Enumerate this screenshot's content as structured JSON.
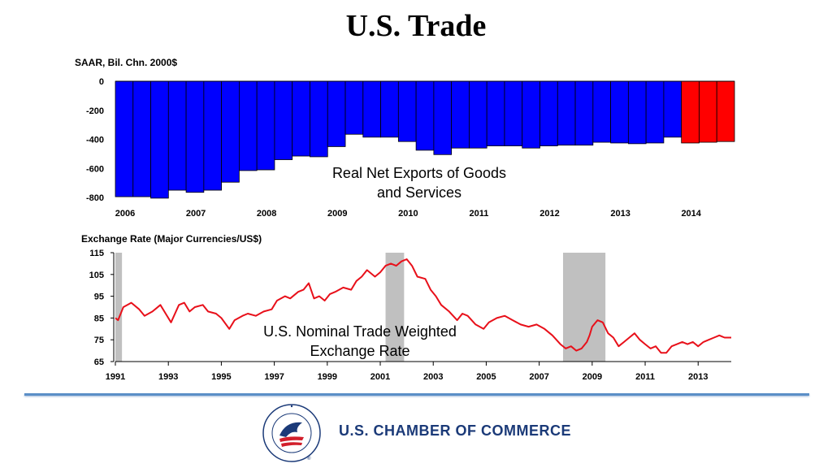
{
  "title": "U.S. Trade",
  "brand": {
    "name": "U.S. CHAMBER OF COMMERCE",
    "seal_text": "THE SPIRIT OF ENTERPRISE · U.S. CHAMBER OF COMMERCE",
    "reg_mark": "®"
  },
  "colors": {
    "bar_actual": "#0000ff",
    "bar_forecast": "#ff0000",
    "line": "#e8101a",
    "recession": "#c0c0c0",
    "divider": "#5b8fc7",
    "brand": "#1b3a78"
  },
  "chart_data": [
    {
      "type": "bar",
      "ylabel": "SAAR, Bil. Chn. 2000$",
      "annotation": [
        "Real Net Exports of Goods",
        "and Services"
      ],
      "ylim": [
        -800,
        0
      ],
      "yticks": [
        "0",
        "-200",
        "-400",
        "-600",
        "-800"
      ],
      "xtick_labels": [
        "2006",
        "2007",
        "2008",
        "2009",
        "2010",
        "2011",
        "2012",
        "2013",
        "2014"
      ],
      "categories": [
        "2006Q1",
        "2006Q2",
        "2006Q3",
        "2006Q4",
        "2007Q1",
        "2007Q2",
        "2007Q3",
        "2007Q4",
        "2008Q1",
        "2008Q2",
        "2008Q3",
        "2008Q4",
        "2009Q1",
        "2009Q2",
        "2009Q3",
        "2009Q4",
        "2010Q1",
        "2010Q2",
        "2010Q3",
        "2010Q4",
        "2011Q1",
        "2011Q2",
        "2011Q3",
        "2011Q4",
        "2012Q1",
        "2012Q2",
        "2012Q3",
        "2012Q4",
        "2013Q1",
        "2013Q2",
        "2013Q3",
        "2013Q4",
        "2014Q1",
        "2014Q2",
        "2014Q3"
      ],
      "values": [
        -795,
        -795,
        -805,
        -750,
        -765,
        -750,
        -695,
        -615,
        -610,
        -540,
        -515,
        -520,
        -450,
        -365,
        -385,
        -385,
        -415,
        -475,
        -505,
        -460,
        -460,
        -445,
        -445,
        -460,
        -445,
        -440,
        -440,
        -420,
        -425,
        -430,
        -425,
        -385,
        -425,
        -420,
        -415
      ],
      "forecast_from_index": 32
    },
    {
      "type": "line",
      "ylabel": "Exchange Rate (Major Currencies/US$)",
      "annotation": [
        "U.S. Nominal Trade Weighted",
        "Exchange Rate"
      ],
      "ylim": [
        65,
        115
      ],
      "yticks": [
        "115",
        "105",
        "95",
        "85",
        "75",
        "65"
      ],
      "xlim": [
        1991,
        2014.25
      ],
      "xtick_labels": [
        "1991",
        "1993",
        "1995",
        "1997",
        "1999",
        "2001",
        "2003",
        "2005",
        "2007",
        "2009",
        "2011",
        "2013"
      ],
      "recessions": [
        [
          1991.0,
          1991.25
        ],
        [
          2001.2,
          2001.9
        ],
        [
          2007.9,
          2009.5
        ]
      ],
      "x": [
        1991.0,
        1991.1,
        1991.3,
        1991.6,
        1991.9,
        1992.1,
        1992.4,
        1992.7,
        1992.9,
        1993.1,
        1993.4,
        1993.6,
        1993.8,
        1994.0,
        1994.3,
        1994.5,
        1994.8,
        1995.0,
        1995.3,
        1995.5,
        1995.8,
        1996.0,
        1996.3,
        1996.6,
        1996.9,
        1997.1,
        1997.4,
        1997.6,
        1997.9,
        1998.1,
        1998.3,
        1998.5,
        1998.7,
        1998.9,
        1999.1,
        1999.3,
        1999.6,
        1999.9,
        2000.1,
        2000.3,
        2000.5,
        2000.8,
        2001.0,
        2001.2,
        2001.4,
        2001.6,
        2001.8,
        2002.0,
        2002.2,
        2002.4,
        2002.7,
        2002.9,
        2003.1,
        2003.3,
        2003.6,
        2003.9,
        2004.1,
        2004.3,
        2004.6,
        2004.9,
        2005.1,
        2005.4,
        2005.7,
        2006.0,
        2006.3,
        2006.6,
        2006.9,
        2007.2,
        2007.5,
        2007.8,
        2008.0,
        2008.2,
        2008.4,
        2008.6,
        2008.8,
        2008.9,
        2009.0,
        2009.2,
        2009.4,
        2009.6,
        2009.8,
        2010.0,
        2010.2,
        2010.4,
        2010.6,
        2010.8,
        2011.0,
        2011.2,
        2011.4,
        2011.6,
        2011.8,
        2012.0,
        2012.2,
        2012.4,
        2012.6,
        2012.8,
        2013.0,
        2013.2,
        2013.4,
        2013.6,
        2013.8,
        2014.0,
        2014.25
      ],
      "y": [
        85,
        84,
        90,
        92,
        89,
        86,
        88,
        91,
        87,
        83,
        91,
        92,
        88,
        90,
        91,
        88,
        87,
        85,
        80,
        84,
        86,
        87,
        86,
        88,
        89,
        93,
        95,
        94,
        97,
        98,
        101,
        94,
        95,
        93,
        96,
        97,
        99,
        98,
        102,
        104,
        107,
        104,
        106,
        109,
        110,
        109,
        111,
        112,
        109,
        104,
        103,
        98,
        95,
        91,
        88,
        84,
        87,
        86,
        82,
        80,
        83,
        85,
        86,
        84,
        82,
        81,
        82,
        80,
        77,
        73,
        71,
        72,
        70,
        71,
        74,
        77,
        81,
        84,
        83,
        78,
        76,
        72,
        74,
        76,
        78,
        75,
        73,
        71,
        72,
        69,
        69,
        72,
        73,
        74,
        73,
        74,
        72,
        74,
        75,
        76,
        77,
        76,
        76
      ]
    }
  ]
}
